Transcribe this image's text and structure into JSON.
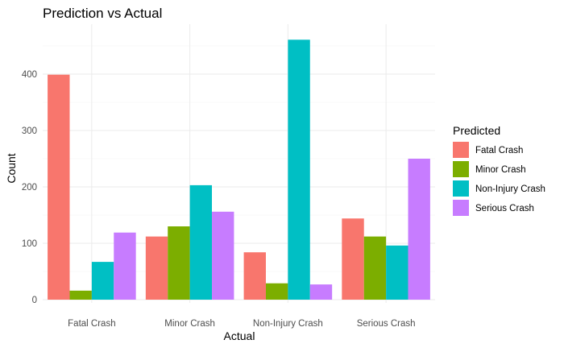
{
  "chart_data": {
    "type": "bar",
    "title": "Prediction vs Actual",
    "xlabel": "Actual",
    "ylabel": "Count",
    "ylim": [
      0,
      470
    ],
    "yticks": [
      0,
      100,
      200,
      300,
      400
    ],
    "grid": true,
    "legend_position": "right",
    "legend_title": "Predicted",
    "categories": [
      "Fatal Crash",
      "Minor Crash",
      "Non-Injury Crash",
      "Serious Crash"
    ],
    "series": [
      {
        "name": "Fatal Crash",
        "color": "#F8766D",
        "values": [
          399,
          112,
          84,
          144
        ]
      },
      {
        "name": "Minor Crash",
        "color": "#7CAE00",
        "values": [
          16,
          130,
          29,
          112
        ]
      },
      {
        "name": "Non-Injury Crash",
        "color": "#00BFC4",
        "values": [
          67,
          203,
          461,
          96
        ]
      },
      {
        "name": "Serious Crash",
        "color": "#C77CFF",
        "values": [
          119,
          156,
          27,
          250
        ]
      }
    ]
  }
}
